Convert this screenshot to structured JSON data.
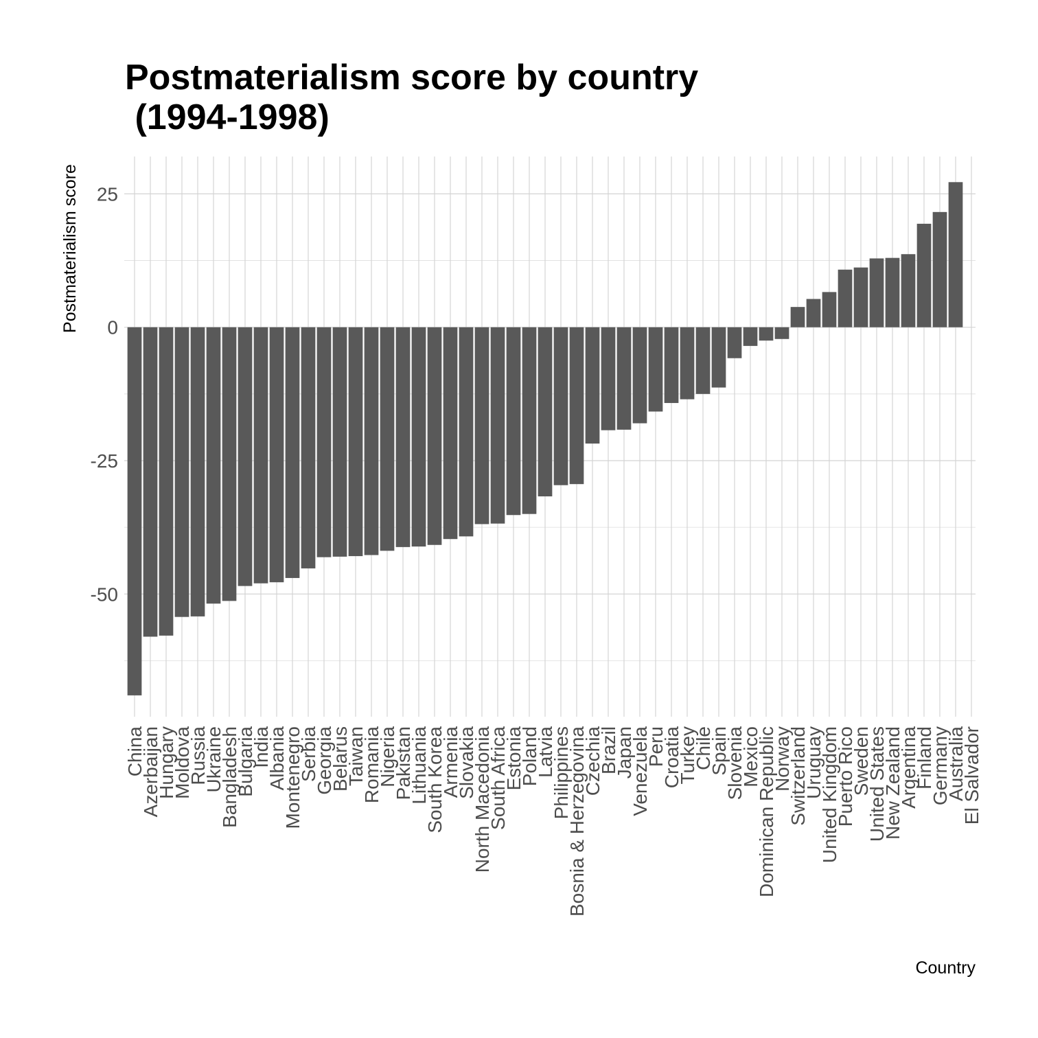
{
  "chart_data": {
    "type": "bar",
    "title": "Postmaterialism score by country",
    "subtitle": " (1994-1998)",
    "xlabel": "Country",
    "ylabel": "Postmaterialism score",
    "ylim": [
      -73,
      32
    ],
    "yticks": [
      25,
      0,
      -25,
      -50
    ],
    "ytick_labels": [
      "25",
      "0",
      "-25",
      "-50"
    ],
    "grid": true,
    "legend": "none",
    "bar_color": "#595959",
    "categories": [
      "China",
      "Azerbaijan",
      "Hungary",
      "Moldova",
      "Russia",
      "Ukraine",
      "Bangladesh",
      "Bulgaria",
      "India",
      "Albania",
      "Montenegro",
      "Serbia",
      "Georgia",
      "Belarus",
      "Taiwan",
      "Romania",
      "Nigeria",
      "Pakistan",
      "Lithuania",
      "South Korea",
      "Armenia",
      "Slovakia",
      "North Macedonia",
      "South Africa",
      "Estonia",
      "Poland",
      "Latvia",
      "Philippines",
      "Bosnia & Herzegovina",
      "Czechia",
      "Brazil",
      "Japan",
      "Venezuela",
      "Peru",
      "Croatia",
      "Turkey",
      "Chile",
      "Spain",
      "Slovenia",
      "Mexico",
      "Dominican Republic",
      "Norway",
      "Switzerland",
      "Uruguay",
      "United Kingdom",
      "Puerto Rico",
      "Sweden",
      "United States",
      "New Zealand",
      "Argentina",
      "Finland",
      "Germany",
      "Australia",
      "El Salvador"
    ],
    "values": [
      -69,
      -58,
      -57.8,
      -54.3,
      -54.2,
      -51.8,
      -51.3,
      -48.5,
      -48,
      -47.8,
      -47,
      -45.2,
      -43.1,
      -43,
      -42.9,
      -42.7,
      -41.9,
      -41.2,
      -41.1,
      -40.8,
      -39.7,
      -39.2,
      -36.9,
      -36.8,
      -35.2,
      -35,
      -31.7,
      -29.6,
      -29.4,
      -21.8,
      -19.3,
      -19.2,
      -18,
      -15.8,
      -14.2,
      -13.5,
      -12.5,
      -11.3,
      -5.8,
      -3.5,
      -2.5,
      -2.2,
      3.8,
      5.3,
      6.6,
      10.8,
      11.2,
      12.9,
      13,
      13.7,
      19.4,
      21.6,
      27.2,
      null
    ]
  }
}
